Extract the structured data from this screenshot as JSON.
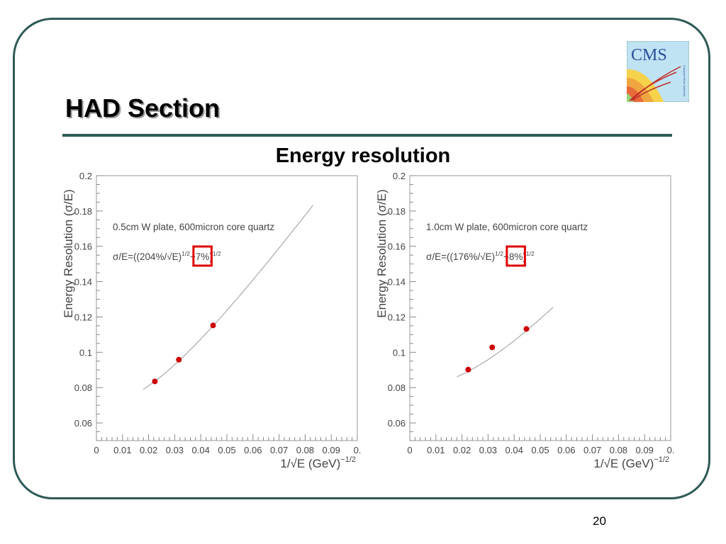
{
  "slide": {
    "title": "HAD Section",
    "subtitle": "Energy resolution",
    "page_number": "20",
    "logo_text": "CMS",
    "frame_color": "#2f5a58"
  },
  "chart_data": [
    {
      "type": "scatter",
      "annotation_line1": "0.5cm W plate, 600micron core quartz",
      "formula": {
        "prefix": "σ/E=((204%/√E)",
        "plus": "+",
        "constant": "7%",
        "suffix": ")",
        "exponent": "1/2"
      },
      "highlight_color": "#e00000",
      "xlabel": {
        "text": "1/√E (GeV)",
        "exponent": "−1/2"
      },
      "ylabel": "Energy Resolution (σ/E)",
      "xlim": [
        0,
        0.1
      ],
      "ylim": [
        0.05,
        0.2
      ],
      "x_ticks": [
        "0",
        "0.01",
        "0.02",
        "0.03",
        "0.04",
        "0.05",
        "0.06",
        "0.07",
        "0.08",
        "0.09",
        "0."
      ],
      "y_ticks": [
        "0.06",
        "0.08",
        "0.1",
        "0.12",
        "0.14",
        "0.16",
        "0.18",
        "0.2"
      ],
      "points": {
        "x": [
          0.0224,
          0.0316,
          0.0447
        ],
        "y": [
          0.0835,
          0.0958,
          0.1152
        ]
      },
      "fit": {
        "stochastic": 2.04,
        "constant": 0.07,
        "x_range": [
          0.018,
          0.083
        ]
      },
      "point_color": "#cc0000",
      "grid": false
    },
    {
      "type": "scatter",
      "annotation_line1": "1.0cm W plate, 600micron core quartz",
      "formula": {
        "prefix": "σ/E=((176%/√E)",
        "plus": "+",
        "constant": "8%",
        "suffix": ")",
        "exponent": "1/2"
      },
      "highlight_color": "#e00000",
      "xlabel": {
        "text": "1/√E (GeV)",
        "exponent": "−1/2"
      },
      "ylabel": "Energy Resolution (σ/E)",
      "xlim": [
        0,
        0.1
      ],
      "ylim": [
        0.05,
        0.2
      ],
      "x_ticks": [
        "0",
        "0.01",
        "0.02",
        "0.03",
        "0.04",
        "0.05",
        "0.06",
        "0.07",
        "0.08",
        "0.09",
        "0."
      ],
      "y_ticks": [
        "0.06",
        "0.08",
        "0.1",
        "0.12",
        "0.14",
        "0.16",
        "0.18",
        "0.2"
      ],
      "points": {
        "x": [
          0.0224,
          0.0316,
          0.0447
        ],
        "y": [
          0.0902,
          0.1028,
          0.1132
        ]
      },
      "fit": {
        "stochastic": 1.76,
        "constant": 0.08,
        "x_range": [
          0.018,
          0.055
        ]
      },
      "point_color": "#cc0000",
      "grid": false
    }
  ]
}
